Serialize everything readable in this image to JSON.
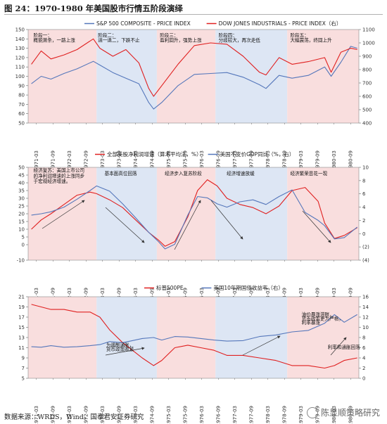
{
  "figure": {
    "title": "图 24：1970-1980 年美国股市行情五阶段演绎",
    "source": "数据来源：WRDS，Wind，国泰君安证券研究",
    "watermark": "陈显顺策略研究"
  },
  "colors": {
    "red": "#e02020",
    "blue": "#5577bb",
    "pink_band": "#f9dede",
    "blue_band": "#dde6f4"
  },
  "chart_data": [
    {
      "type": "line",
      "id": "panel1",
      "series": [
        {
          "name": "S&P 500 COMPOSITE - PRICE INDEX",
          "axis": "left",
          "color": "#5577bb",
          "x": [
            1971.0,
            1971.3,
            1971.6,
            1972.0,
            1972.4,
            1972.9,
            1973.1,
            1973.5,
            1973.9,
            1974.3,
            1974.6,
            1974.75,
            1975.0,
            1975.5,
            1976.0,
            1976.5,
            1977.0,
            1977.5,
            1978.0,
            1978.2,
            1978.6,
            1979.0,
            1979.5,
            1980.0,
            1980.2,
            1980.5,
            1980.8,
            1981.0
          ],
          "values": [
            92,
            100,
            97,
            103,
            108,
            116,
            112,
            104,
            98,
            92,
            72,
            65,
            72,
            90,
            102,
            103,
            104,
            99,
            91,
            87,
            101,
            98,
            101,
            110,
            100,
            115,
            132,
            130
          ]
        },
        {
          "name": "DOW JONES INDUSTRIALS - PRICE INDEX（右）",
          "axis": "right",
          "color": "#e02020",
          "x": [
            1971.0,
            1971.3,
            1971.6,
            1972.0,
            1972.4,
            1972.9,
            1973.1,
            1973.5,
            1973.9,
            1974.3,
            1974.6,
            1974.75,
            1975.0,
            1975.5,
            1976.0,
            1976.5,
            1977.0,
            1977.5,
            1978.0,
            1978.2,
            1978.6,
            1979.0,
            1979.5,
            1980.0,
            1980.2,
            1980.5,
            1980.8,
            1981.0
          ],
          "values": [
            840,
            940,
            880,
            910,
            950,
            1030,
            960,
            900,
            950,
            850,
            660,
            600,
            680,
            840,
            980,
            1000,
            990,
            900,
            780,
            760,
            890,
            840,
            860,
            890,
            780,
            930,
            960,
            950
          ]
        }
      ],
      "left_axis": {
        "min": 50,
        "max": 150,
        "ticks": [
          50,
          60,
          70,
          80,
          90,
          100,
          110,
          120,
          130,
          140,
          150
        ]
      },
      "right_axis": {
        "min": 400,
        "max": 1100,
        "ticks": [
          400,
          500,
          600,
          700,
          800,
          900,
          1000,
          1100
        ]
      },
      "annotations": [
        {
          "x": 1971.02,
          "y": 142,
          "text": "阶段一："
        },
        {
          "x": 1971.02,
          "y": 137,
          "text": "概貌萧条，一路上涨"
        },
        {
          "x": 1973.0,
          "y": 142,
          "text": "阶段二："
        },
        {
          "x": 1973.0,
          "y": 137,
          "text": "进一退二，下跌不止"
        },
        {
          "x": 1974.9,
          "y": 142,
          "text": "阶段三："
        },
        {
          "x": 1974.9,
          "y": 137,
          "text": "盈利回升，强势上涨"
        },
        {
          "x": 1976.7,
          "y": 142,
          "text": "阶段四："
        },
        {
          "x": 1976.7,
          "y": 137,
          "text": "分歧较大，再次走低"
        },
        {
          "x": 1978.9,
          "y": 142,
          "text": "阶段五："
        },
        {
          "x": 1978.9,
          "y": 137,
          "text": "大幅震荡，终回上升"
        }
      ]
    },
    {
      "type": "line",
      "id": "panel2",
      "series": [
        {
          "name": "全部美股净利润增速（算术平均法，%）",
          "axis": "left",
          "color": "#e02020",
          "x": [
            1971.0,
            1971.3,
            1971.6,
            1972.0,
            1972.4,
            1972.8,
            1973.0,
            1973.4,
            1973.8,
            1974.2,
            1974.6,
            1974.9,
            1975.1,
            1975.4,
            1975.8,
            1976.1,
            1976.4,
            1976.7,
            1977.0,
            1977.4,
            1977.8,
            1978.2,
            1978.6,
            1979.0,
            1979.4,
            1979.8,
            1980.0,
            1980.3,
            1980.6,
            1981.0
          ],
          "values": [
            10,
            16,
            20,
            26,
            32,
            34,
            33,
            29,
            24,
            16,
            8,
            3,
            -1,
            2,
            18,
            35,
            42,
            38,
            30,
            26,
            24,
            20,
            25,
            35,
            37,
            28,
            14,
            4,
            6,
            11
          ]
        },
        {
          "name": "美国不变价GDP同比（%，右）",
          "axis": "right",
          "color": "#5577bb",
          "x": [
            1971.0,
            1971.3,
            1971.6,
            1972.0,
            1972.4,
            1972.8,
            1973.0,
            1973.4,
            1973.8,
            1974.2,
            1974.6,
            1974.9,
            1975.1,
            1975.4,
            1975.8,
            1976.1,
            1976.4,
            1976.7,
            1977.0,
            1977.4,
            1977.8,
            1978.2,
            1978.6,
            1979.0,
            1979.4,
            1979.8,
            1980.0,
            1980.3,
            1980.6,
            1981.0
          ],
          "values": [
            2.8,
            3.0,
            3.3,
            4.0,
            5.2,
            6.5,
            7.2,
            6.4,
            4.5,
            2.4,
            0.2,
            -1.2,
            -2.3,
            -1.6,
            2.8,
            5.6,
            5.4,
            4.5,
            4.0,
            4.8,
            5.1,
            4.4,
            5.6,
            6.6,
            3.2,
            2.0,
            1.2,
            -0.8,
            -0.6,
            1.0
          ]
        }
      ],
      "left_axis": {
        "min": -10,
        "max": 50,
        "ticks": [
          -10,
          0,
          5,
          10,
          15,
          20,
          25,
          30,
          35,
          40,
          45,
          50
        ]
      },
      "right_axis": {
        "min": -4,
        "max": 10,
        "ticks": [
          -4,
          -2,
          0,
          2,
          4,
          6,
          8,
          10
        ],
        "tick_labels": [
          "(4)",
          "(2)",
          "0",
          "2",
          "4",
          "6",
          "8",
          "10"
        ]
      },
      "annotations": [
        {
          "x": 1971.02,
          "y": 47,
          "text": "经济复苏：美国上市公司"
        },
        {
          "x": 1971.02,
          "y": 43.5,
          "text": "的净利润增速的上涨同步"
        },
        {
          "x": 1971.02,
          "y": 40,
          "text": "于宏观经济增速。"
        },
        {
          "x": 1973.2,
          "y": 45,
          "text": "基本面高位回落"
        },
        {
          "x": 1975.05,
          "y": 45,
          "text": "经济步入复苏阶段"
        },
        {
          "x": 1976.95,
          "y": 45,
          "text": "经济增速放缓"
        },
        {
          "x": 1978.9,
          "y": 45,
          "text": "经济繁荣昙花一现"
        }
      ]
    },
    {
      "type": "line",
      "id": "panel3",
      "series": [
        {
          "name": "标普500PE",
          "axis": "left",
          "color": "#e02020",
          "x": [
            1971.0,
            1971.3,
            1971.6,
            1972.0,
            1972.4,
            1972.8,
            1973.1,
            1973.4,
            1973.8,
            1974.1,
            1974.4,
            1974.75,
            1975.0,
            1975.4,
            1975.8,
            1976.2,
            1976.6,
            1977.0,
            1977.5,
            1978.0,
            1978.5,
            1979.0,
            1979.5,
            1980.0,
            1980.3,
            1980.6,
            1981.0
          ],
          "values": [
            19.5,
            19,
            18.5,
            18.5,
            18,
            18,
            17,
            14.5,
            12,
            10.5,
            9,
            7.5,
            8.5,
            11,
            11.5,
            11,
            10.5,
            9.5,
            9.5,
            9,
            8.5,
            7.5,
            7.5,
            7.0,
            7.5,
            8.5,
            9
          ]
        },
        {
          "name": "美国10年期国债收益率（右）",
          "axis": "right",
          "color": "#5577bb",
          "x": [
            1971.0,
            1971.3,
            1971.6,
            1972.0,
            1972.4,
            1972.8,
            1973.1,
            1973.4,
            1973.8,
            1974.1,
            1974.4,
            1974.75,
            1975.0,
            1975.4,
            1975.8,
            1976.2,
            1976.6,
            1977.0,
            1977.5,
            1978.0,
            1978.5,
            1979.0,
            1979.5,
            1980.0,
            1980.3,
            1980.6,
            1981.0
          ],
          "values": [
            6.2,
            6.1,
            6.4,
            6.1,
            6.2,
            6.4,
            6.6,
            7.2,
            7.0,
            7.4,
            7.8,
            8.0,
            7.5,
            8.2,
            8.1,
            7.8,
            7.5,
            7.3,
            7.4,
            8.2,
            8.5,
            9.1,
            9.4,
            10.8,
            12.5,
            11.0,
            12.5
          ]
        }
      ],
      "left_axis": {
        "min": 5,
        "max": 21,
        "ticks": [
          5,
          7,
          9,
          11,
          13,
          15,
          17,
          19,
          21
        ]
      },
      "right_axis": {
        "min": 0,
        "max": 16,
        "ticks": [
          0,
          2,
          4,
          6,
          8,
          10,
          12,
          14,
          16
        ]
      },
      "annotations": [
        {
          "x": 1973.25,
          "y": 11.2,
          "text": "为遏制通胀，"
        },
        {
          "x": 1973.25,
          "y": 10.4,
          "text": "货币政策收紧"
        },
        {
          "x": 1979.25,
          "y": 17.2,
          "text": "油价暴涨滞胀，"
        },
        {
          "x": 1979.25,
          "y": 16.4,
          "text": "货币政策更为严格，"
        },
        {
          "x": 1979.25,
          "y": 15.6,
          "text": "利率暴涨"
        },
        {
          "x": 1980.05,
          "y": 10.8,
          "text": "利率和通胀回落"
        }
      ]
    }
  ],
  "x_ticks": [
    "1971-03",
    "1971-09",
    "1972-03",
    "1972-09",
    "1973-03",
    "1973-09",
    "1974-03",
    "1974-09",
    "1975-03",
    "1975-09",
    "1976-03",
    "1976-09",
    "1977-03",
    "1977-09",
    "1978-03",
    "1978-09",
    "1979-03",
    "1979-09",
    "1980-03",
    "1980-09"
  ],
  "bands": [
    {
      "start": 1970.9,
      "end": 1973.0,
      "color": "pink"
    },
    {
      "start": 1973.0,
      "end": 1974.85,
      "color": "blue"
    },
    {
      "start": 1974.85,
      "end": 1976.65,
      "color": "pink"
    },
    {
      "start": 1976.65,
      "end": 1978.85,
      "color": "blue"
    },
    {
      "start": 1978.85,
      "end": 1981.05,
      "color": "pink"
    }
  ]
}
